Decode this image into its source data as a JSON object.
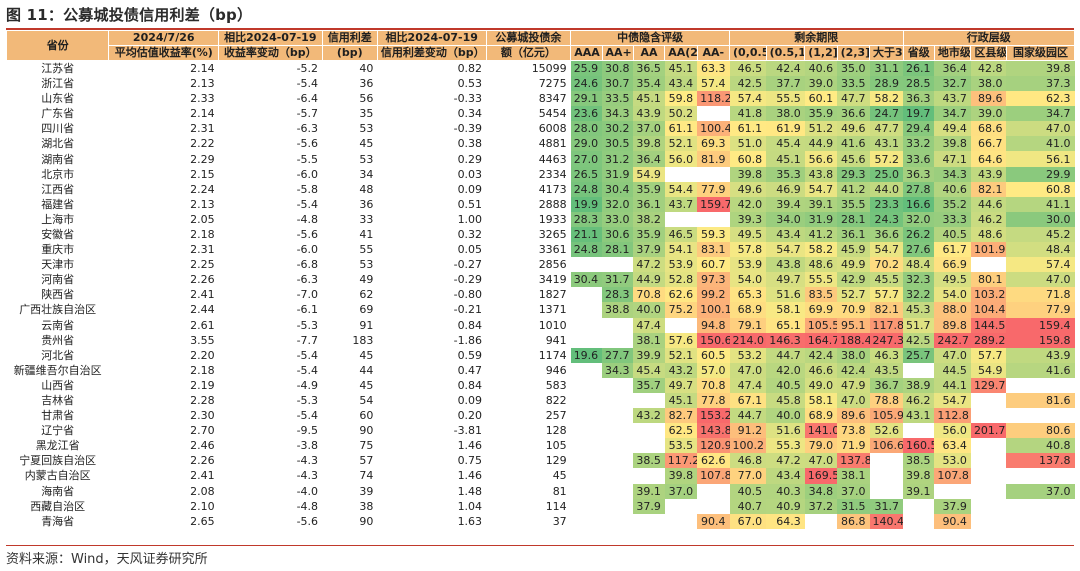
{
  "title": "图 11：公募城投债信用利差（bp）",
  "source": "资料来源：Wind，天风证券研究所",
  "headers": {
    "province": "省份",
    "date": "2024/7/26",
    "yield": "平均估值收益率(%)",
    "chg_label": "相比2024-07-19",
    "chg_sub": "收益率变动（bp）",
    "spread": "信用利差",
    "spread_unit": "(bp)",
    "spread_chg_label": "相比2024-07-19",
    "spread_chg_sub": "信用利差变动（bp）",
    "balance": "公募城投债余",
    "balance_sub": "额（亿元）",
    "group_rating": "中债隐含评级",
    "group_term": "剩余期限",
    "group_admin": "行政层级",
    "rating_cols": [
      "AAA",
      "AA+",
      "AA",
      "AA(2)",
      "AA-"
    ],
    "term_cols": [
      "(0,0.5]",
      "(0.5,1]",
      "(1,2]",
      "(2,3]",
      "大于3"
    ],
    "admin_cols": [
      "省级",
      "地市级",
      "区县级",
      "国家级园区"
    ]
  },
  "rows": [
    {
      "p": "江苏省",
      "y": "2.14",
      "c": "-5.2",
      "s": "40",
      "sc": "0.82",
      "b": "15099",
      "v": [
        25.9,
        30.8,
        36.5,
        45.1,
        63.3,
        46.5,
        42.4,
        40.6,
        35.0,
        31.1,
        26.1,
        36.4,
        42.8,
        39.8
      ]
    },
    {
      "p": "浙江省",
      "y": "2.13",
      "c": "-5.4",
      "s": "36",
      "sc": "0.53",
      "b": "7275",
      "v": [
        24.6,
        30.7,
        35.4,
        43.4,
        57.4,
        42.5,
        37.7,
        39.0,
        33.5,
        28.9,
        28.5,
        32.7,
        38.0,
        37.3
      ]
    },
    {
      "p": "山东省",
      "y": "2.33",
      "c": "-6.4",
      "s": "56",
      "sc": "-0.33",
      "b": "8347",
      "v": [
        29.1,
        33.5,
        45.1,
        59.8,
        118.2,
        57.4,
        55.5,
        60.1,
        47.7,
        58.2,
        36.3,
        43.7,
        89.6,
        62.3
      ]
    },
    {
      "p": "广东省",
      "y": "2.14",
      "c": "-5.7",
      "s": "35",
      "sc": "0.34",
      "b": "5454",
      "v": [
        23.6,
        34.3,
        43.9,
        50.2,
        null,
        41.8,
        38.0,
        35.9,
        36.6,
        24.7,
        19.7,
        34.7,
        39.0,
        34.7
      ]
    },
    {
      "p": "四川省",
      "y": "2.31",
      "c": "-6.3",
      "s": "53",
      "sc": "-0.39",
      "b": "6008",
      "v": [
        28.0,
        30.2,
        37.0,
        61.1,
        100.4,
        61.1,
        61.9,
        51.2,
        49.6,
        47.7,
        29.4,
        49.4,
        68.6,
        47.0
      ]
    },
    {
      "p": "湖北省",
      "y": "2.22",
      "c": "-5.6",
      "s": "45",
      "sc": "0.38",
      "b": "4881",
      "v": [
        29.0,
        30.5,
        39.8,
        52.1,
        69.3,
        51.0,
        45.4,
        44.9,
        41.6,
        43.1,
        33.2,
        39.8,
        66.7,
        41.0
      ]
    },
    {
      "p": "湖南省",
      "y": "2.29",
      "c": "-5.5",
      "s": "53",
      "sc": "0.29",
      "b": "4463",
      "v": [
        27.0,
        31.2,
        36.4,
        56.0,
        81.9,
        60.8,
        45.1,
        56.6,
        45.6,
        57.2,
        33.6,
        47.1,
        64.6,
        56.1
      ]
    },
    {
      "p": "北京市",
      "y": "2.15",
      "c": "-6.0",
      "s": "34",
      "sc": "0.03",
      "b": "2334",
      "v": [
        26.5,
        31.9,
        54.9,
        null,
        null,
        39.8,
        35.3,
        43.8,
        29.3,
        25.0,
        36.3,
        34.3,
        43.9,
        29.9
      ]
    },
    {
      "p": "江西省",
      "y": "2.24",
      "c": "-5.8",
      "s": "48",
      "sc": "0.09",
      "b": "4173",
      "v": [
        24.8,
        30.4,
        35.9,
        54.4,
        77.9,
        49.6,
        46.9,
        54.7,
        41.2,
        44.0,
        27.8,
        40.6,
        82.1,
        60.8
      ]
    },
    {
      "p": "福建省",
      "y": "2.13",
      "c": "-5.4",
      "s": "36",
      "sc": "0.51",
      "b": "2888",
      "v": [
        19.9,
        32.0,
        36.1,
        43.7,
        159.7,
        42.0,
        39.4,
        39.1,
        35.5,
        23.3,
        16.6,
        35.2,
        44.6,
        41.1
      ]
    },
    {
      "p": "上海市",
      "y": "2.05",
      "c": "-4.8",
      "s": "33",
      "sc": "1.00",
      "b": "1933",
      "v": [
        28.3,
        33.0,
        38.2,
        null,
        null,
        39.3,
        34.0,
        31.9,
        28.1,
        24.3,
        32.0,
        33.3,
        46.2,
        30.0
      ]
    },
    {
      "p": "安徽省",
      "y": "2.18",
      "c": "-5.6",
      "s": "41",
      "sc": "0.32",
      "b": "3265",
      "v": [
        21.1,
        30.6,
        35.9,
        46.5,
        59.3,
        49.5,
        43.4,
        41.2,
        36.1,
        36.6,
        26.2,
        40.5,
        48.6,
        45.2
      ]
    },
    {
      "p": "重庆市",
      "y": "2.31",
      "c": "-6.0",
      "s": "55",
      "sc": "0.05",
      "b": "3361",
      "v": [
        24.8,
        28.1,
        37.9,
        54.1,
        83.1,
        57.8,
        54.7,
        58.2,
        45.9,
        54.7,
        27.6,
        61.7,
        101.9,
        48.4
      ]
    },
    {
      "p": "天津市",
      "y": "2.25",
      "c": "-6.8",
      "s": "53",
      "sc": "-0.27",
      "b": "2856",
      "v": [
        null,
        null,
        47.2,
        53.9,
        60.7,
        53.9,
        43.8,
        48.6,
        49.9,
        70.2,
        48.4,
        66.9,
        null,
        57.4
      ]
    },
    {
      "p": "河南省",
      "y": "2.26",
      "c": "-6.3",
      "s": "49",
      "sc": "-0.29",
      "b": "3419",
      "v": [
        30.4,
        31.7,
        44.9,
        52.8,
        97.3,
        54.0,
        49.7,
        55.5,
        42.9,
        45.5,
        32.3,
        49.5,
        80.1,
        47.0
      ]
    },
    {
      "p": "陕西省",
      "y": "2.41",
      "c": "-7.0",
      "s": "62",
      "sc": "-0.80",
      "b": "1827",
      "v": [
        null,
        28.3,
        70.8,
        62.6,
        99.2,
        65.3,
        51.6,
        83.5,
        52.7,
        57.7,
        32.2,
        54.0,
        103.2,
        71.8
      ]
    },
    {
      "p": "广西壮族自治区",
      "y": "2.44",
      "c": "-6.1",
      "s": "69",
      "sc": "-0.21",
      "b": "1371",
      "v": [
        null,
        38.8,
        40.0,
        75.2,
        100.1,
        68.9,
        58.1,
        69.9,
        70.9,
        82.1,
        45.3,
        88.0,
        104.4,
        77.9
      ]
    },
    {
      "p": "云南省",
      "y": "2.61",
      "c": "-5.3",
      "s": "91",
      "sc": "0.84",
      "b": "1010",
      "v": [
        null,
        null,
        47.4,
        null,
        94.8,
        79.1,
        65.1,
        105.5,
        95.1,
        117.8,
        51.7,
        89.8,
        144.5,
        159.4
      ]
    },
    {
      "p": "贵州省",
      "y": "3.55",
      "c": "-7.7",
      "s": "183",
      "sc": "-1.86",
      "b": "941",
      "v": [
        null,
        null,
        38.1,
        57.6,
        150.6,
        214.0,
        146.3,
        164.7,
        188.4,
        247.3,
        42.5,
        242.7,
        289.2,
        159.8
      ]
    },
    {
      "p": "河北省",
      "y": "2.20",
      "c": "-5.4",
      "s": "45",
      "sc": "0.59",
      "b": "1174",
      "v": [
        19.6,
        27.7,
        39.9,
        52.1,
        60.5,
        53.2,
        44.7,
        42.4,
        38.0,
        46.3,
        25.7,
        47.0,
        57.7,
        43.9
      ]
    },
    {
      "p": "新疆维吾尔自治区",
      "y": "2.18",
      "c": "-5.4",
      "s": "44",
      "sc": "0.47",
      "b": "946",
      "v": [
        null,
        34.3,
        45.4,
        43.2,
        57.0,
        47.0,
        42.0,
        46.6,
        42.4,
        43.5,
        null,
        44.5,
        54.9,
        41.6
      ]
    },
    {
      "p": "山西省",
      "y": "2.19",
      "c": "-4.9",
      "s": "45",
      "sc": "0.84",
      "b": "583",
      "v": [
        null,
        null,
        35.7,
        49.7,
        70.8,
        47.4,
        40.5,
        49.0,
        47.9,
        36.7,
        38.9,
        44.1,
        129.7,
        null
      ]
    },
    {
      "p": "吉林省",
      "y": "2.28",
      "c": "-5.3",
      "s": "54",
      "sc": "0.09",
      "b": "822",
      "v": [
        null,
        null,
        null,
        45.1,
        77.8,
        67.1,
        45.8,
        58.1,
        47.0,
        78.8,
        46.2,
        54.7,
        null,
        81.6
      ]
    },
    {
      "p": "甘肃省",
      "y": "2.30",
      "c": "-5.4",
      "s": "60",
      "sc": "0.20",
      "b": "257",
      "v": [
        null,
        null,
        43.2,
        82.7,
        153.2,
        44.7,
        40.0,
        68.9,
        89.6,
        105.9,
        43.1,
        112.8,
        null,
        null
      ]
    },
    {
      "p": "辽宁省",
      "y": "2.70",
      "c": "-9.5",
      "s": "90",
      "sc": "-3.81",
      "b": "128",
      "v": [
        null,
        null,
        null,
        62.5,
        143.8,
        91.2,
        51.6,
        141.0,
        73.8,
        52.6,
        null,
        56.0,
        201.7,
        80.6
      ]
    },
    {
      "p": "黑龙江省",
      "y": "2.46",
      "c": "-3.8",
      "s": "75",
      "sc": "1.46",
      "b": "105",
      "v": [
        null,
        null,
        null,
        53.5,
        120.9,
        100.2,
        55.3,
        79.0,
        71.9,
        106.6,
        160.5,
        63.4,
        null,
        40.8
      ]
    },
    {
      "p": "宁夏回族自治区",
      "y": "2.26",
      "c": "-4.3",
      "s": "57",
      "sc": "0.75",
      "b": "129",
      "v": [
        null,
        null,
        38.5,
        117.2,
        62.6,
        46.8,
        47.2,
        47.0,
        137.8,
        null,
        38.5,
        53.0,
        null,
        137.8
      ]
    },
    {
      "p": "内蒙古自治区",
      "y": "2.41",
      "c": "-4.3",
      "s": "74",
      "sc": "1.46",
      "b": "45",
      "v": [
        null,
        null,
        null,
        39.8,
        107.8,
        77.0,
        43.4,
        169.5,
        38.1,
        null,
        39.8,
        107.8,
        null,
        null
      ]
    },
    {
      "p": "海南省",
      "y": "2.08",
      "c": "-4.0",
      "s": "39",
      "sc": "1.48",
      "b": "81",
      "v": [
        null,
        null,
        39.1,
        37.0,
        null,
        40.5,
        40.3,
        34.8,
        37.0,
        null,
        39.1,
        null,
        null,
        37.0
      ]
    },
    {
      "p": "西藏自治区",
      "y": "2.10",
      "c": "-4.8",
      "s": "38",
      "sc": "1.04",
      "b": "114",
      "v": [
        null,
        null,
        37.9,
        null,
        null,
        40.7,
        40.9,
        37.2,
        31.5,
        31.7,
        null,
        37.9,
        null,
        null
      ]
    },
    {
      "p": "青海省",
      "y": "2.65",
      "c": "-5.6",
      "s": "90",
      "sc": "1.63",
      "b": "37",
      "v": [
        null,
        null,
        null,
        null,
        90.4,
        67.0,
        64.3,
        null,
        86.8,
        140.4,
        null,
        90.4,
        null,
        null
      ]
    }
  ]
}
